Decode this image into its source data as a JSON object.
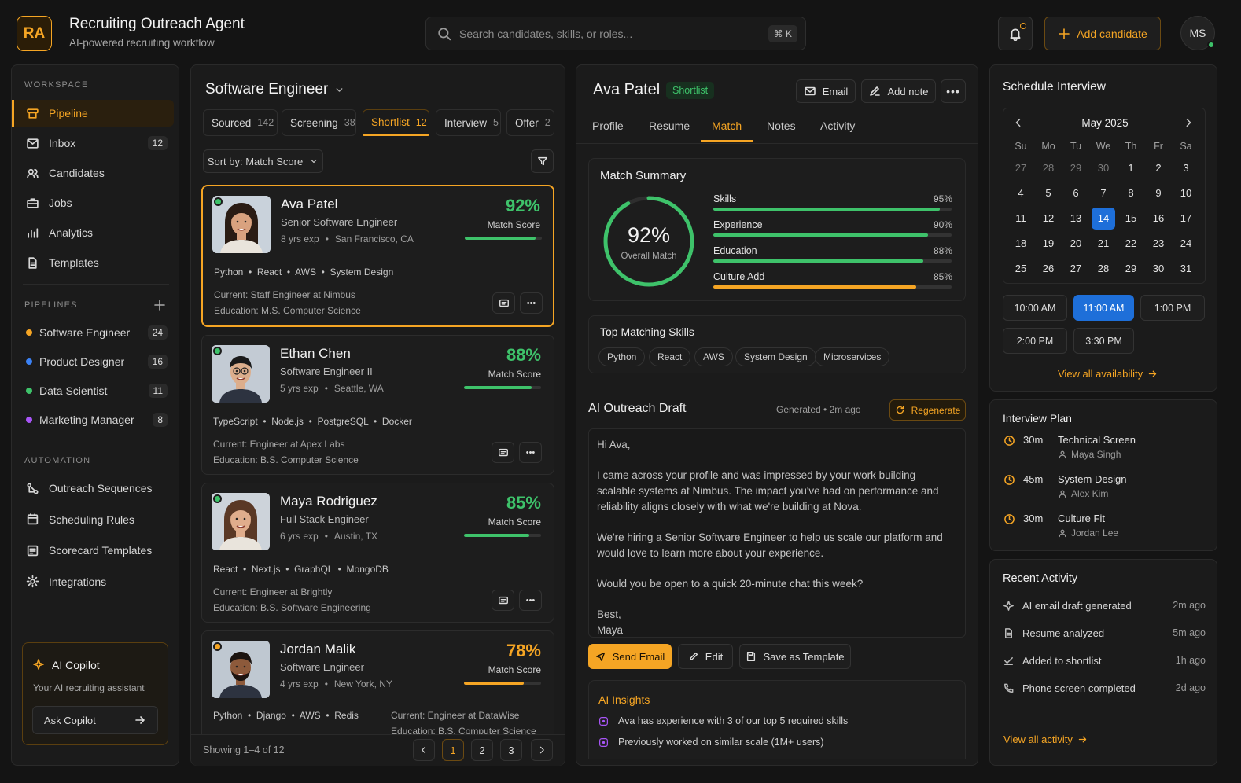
{
  "header": {
    "logo": "RA",
    "title": "Recruiting Outreach Agent",
    "subtitle": "AI-powered recruiting workflow",
    "search_placeholder": "Search candidates, skills, or roles...",
    "shortcut": "⌘ K",
    "add_candidate": "Add candidate",
    "user_initials": "MS"
  },
  "sidebar": {
    "workspace_heading": "WORKSPACE",
    "workspace": [
      {
        "label": "Pipeline",
        "count": "",
        "icon": "pipeline-icon",
        "active": true
      },
      {
        "label": "Inbox",
        "count": "12",
        "icon": "inbox-icon"
      },
      {
        "label": "Candidates",
        "count": "",
        "icon": "users-icon"
      },
      {
        "label": "Jobs",
        "count": "",
        "icon": "briefcase-icon"
      },
      {
        "label": "Analytics",
        "count": "",
        "icon": "bar-chart-icon"
      },
      {
        "label": "Templates",
        "count": "",
        "icon": "document-icon"
      }
    ],
    "pipelines_heading": "PIPELINES",
    "pipelines": [
      {
        "label": "Software Engineer",
        "count": "24",
        "color": "#f5a524"
      },
      {
        "label": "Product Designer",
        "count": "16",
        "color": "#3b82f6"
      },
      {
        "label": "Data Scientist",
        "count": "11",
        "color": "#3ec26a"
      },
      {
        "label": "Marketing Manager",
        "count": "8",
        "color": "#a855f7"
      }
    ],
    "automation_heading": "AUTOMATION",
    "automation": [
      {
        "label": "Outreach Sequences",
        "icon": "sequence-icon"
      },
      {
        "label": "Scheduling Rules",
        "icon": "calendar-icon"
      },
      {
        "label": "Scorecard Templates",
        "icon": "scorecard-icon"
      },
      {
        "label": "Integrations",
        "icon": "gear-icon"
      }
    ],
    "copilot": {
      "title": "AI Copilot",
      "subtitle": "Your AI recruiting assistant",
      "button": "Ask Copilot"
    }
  },
  "list": {
    "job_title": "Software Engineer",
    "tabs": [
      {
        "label": "Sourced",
        "count": "142"
      },
      {
        "label": "Screening",
        "count": "38"
      },
      {
        "label": "Shortlist",
        "count": "12",
        "active": true
      },
      {
        "label": "Interview",
        "count": "5"
      },
      {
        "label": "Offer",
        "count": "2"
      }
    ],
    "sort_label": "Sort by: Match Score",
    "score_label": "Match Score",
    "candidates": [
      {
        "name": "Ava Patel",
        "role": "Senior Software Engineer",
        "exp": "8 yrs exp",
        "location": "San Francisco, CA",
        "score": "92%",
        "score_value": 0.92,
        "score_color": "#3ec26a",
        "status_color": "#3ec26a",
        "skills": "Python  •  React  •  AWS  •  System Design",
        "current": "Current: Staff Engineer at Nimbus",
        "education": "Education: M.S. Computer Science",
        "selected": true
      },
      {
        "name": "Ethan Chen",
        "role": "Software Engineer II",
        "exp": "5 yrs exp",
        "location": "Seattle, WA",
        "score": "88%",
        "score_value": 0.88,
        "score_color": "#3ec26a",
        "status_color": "#3ec26a",
        "skills": "TypeScript  •  Node.js  •  PostgreSQL  •  Docker",
        "current": "Current: Engineer at Apex Labs",
        "education": "Education: B.S. Computer Science"
      },
      {
        "name": "Maya Rodriguez",
        "role": "Full Stack Engineer",
        "exp": "6 yrs exp",
        "location": "Austin, TX",
        "score": "85%",
        "score_value": 0.85,
        "score_color": "#3ec26a",
        "status_color": "#3ec26a",
        "skills": "React  •  Next.js  •  GraphQL  •  MongoDB",
        "current": "Current: Engineer at Brightly",
        "education": "Education: B.S. Software Engineering"
      },
      {
        "name": "Jordan Malik",
        "role": "Software Engineer",
        "exp": "4 yrs exp",
        "location": "New York, NY",
        "score": "78%",
        "score_value": 0.78,
        "score_color": "#f5a524",
        "status_color": "#f5a524",
        "skills": "Python  •  Django  •  AWS  •  Redis",
        "current": "Current: Engineer at DataWise",
        "education": "Education: B.S. Computer Science"
      }
    ],
    "footer": "Showing 1–4 of 12",
    "pages": [
      "1",
      "2",
      "3"
    ]
  },
  "detail": {
    "name": "Ava Patel",
    "badge": "Shortlist",
    "email_btn": "Email",
    "note_btn": "Add note",
    "tabs": [
      "Profile",
      "Resume",
      "Match",
      "Notes",
      "Activity"
    ],
    "active_tab": "Match",
    "match_title": "Match Summary",
    "overall": "92%",
    "overall_value": 0.92,
    "overall_label": "Overall Match",
    "metrics": [
      {
        "label": "Skills",
        "value": "95%",
        "fraction": 0.95,
        "color": "#3ec26a"
      },
      {
        "label": "Experience",
        "value": "90%",
        "fraction": 0.9,
        "color": "#3ec26a"
      },
      {
        "label": "Education",
        "value": "88%",
        "fraction": 0.88,
        "color": "#3ec26a"
      },
      {
        "label": "Culture Add",
        "value": "85%",
        "fraction": 0.85,
        "color": "#f5a524"
      }
    ],
    "skills_title": "Top Matching Skills",
    "skills": [
      "Python",
      "React",
      "AWS",
      "System Design",
      "Microservices"
    ],
    "draft_title": "AI Outreach Draft",
    "draft_meta": "Generated • 2m ago",
    "regenerate": "Regenerate",
    "draft_lines": [
      "Hi Ava,",
      "I came across your profile and was impressed by your work building scalable systems at Nimbus. The impact you've had on performance and reliability aligns closely with what we're building at Nova.",
      "We're hiring a Senior Software Engineer to help us scale our platform and would love to learn more about your experience.",
      "Would you be open to a quick 20-minute chat this week?",
      "Best,\nMaya"
    ],
    "send": "Send Email",
    "edit": "Edit",
    "save_template": "Save as Template",
    "insights_title": "AI Insights",
    "insights": [
      "Ava has experience with 3 of our top 5 required skills",
      "Previously worked on similar scale (1M+ users)"
    ]
  },
  "schedule": {
    "title": "Schedule Interview",
    "month": "May 2025",
    "weekdays": [
      "Su",
      "Mo",
      "Tu",
      "We",
      "Th",
      "Fr",
      "Sa"
    ],
    "days": [
      "27",
      "28",
      "29",
      "30",
      "1",
      "2",
      "3",
      "4",
      "5",
      "6",
      "7",
      "8",
      "9",
      "10",
      "11",
      "12",
      "13",
      "14",
      "15",
      "16",
      "17",
      "18",
      "19",
      "20",
      "21",
      "22",
      "23",
      "24",
      "25",
      "26",
      "27",
      "28",
      "29",
      "30",
      "31"
    ],
    "other_month_count": 4,
    "selected_day_index": 17,
    "slots": [
      "10:00 AM",
      "11:00 AM",
      "1:00 PM",
      "2:00 PM",
      "3:30 PM"
    ],
    "selected_slot": "11:00 AM",
    "view_all": "View all availability"
  },
  "plan": {
    "title": "Interview Plan",
    "items": [
      {
        "time": "30m",
        "name": "Technical Screen",
        "who": "Maya Singh"
      },
      {
        "time": "45m",
        "name": "System Design",
        "who": "Alex Kim"
      },
      {
        "time": "30m",
        "name": "Culture Fit",
        "who": "Jordan Lee"
      }
    ]
  },
  "activity": {
    "title": "Recent Activity",
    "items": [
      {
        "label": "AI email draft generated",
        "time": "2m ago",
        "icon": "sparkle-icon"
      },
      {
        "label": "Resume analyzed",
        "time": "5m ago",
        "icon": "document-icon"
      },
      {
        "label": "Added to shortlist",
        "time": "1h ago",
        "icon": "shortlist-icon"
      },
      {
        "label": "Phone screen completed",
        "time": "2d ago",
        "icon": "phone-icon"
      }
    ],
    "view_all": "View all activity"
  },
  "colors": {
    "accent": "#f5a524",
    "success": "#3ec26a",
    "primary": "#1e6fd9"
  }
}
